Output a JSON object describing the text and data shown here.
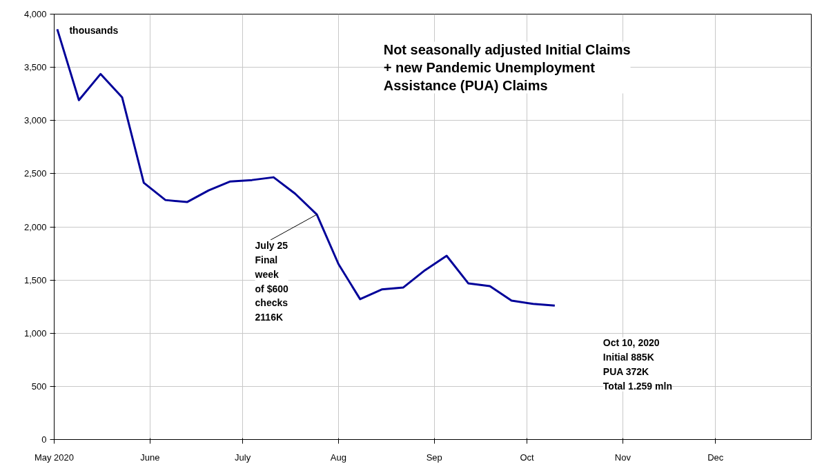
{
  "chart_data": {
    "type": "line",
    "title": "Not seasonally adjusted Initial Claims\n+ new Pandemic Unemployment\nAssistance (PUA) Claims",
    "x": [
      "2020-05-02",
      "2020-05-09",
      "2020-05-16",
      "2020-05-23",
      "2020-05-30",
      "2020-06-06",
      "2020-06-13",
      "2020-06-20",
      "2020-06-27",
      "2020-07-04",
      "2020-07-11",
      "2020-07-18",
      "2020-07-25",
      "2020-08-01",
      "2020-08-08",
      "2020-08-15",
      "2020-08-22",
      "2020-08-29",
      "2020-09-05",
      "2020-09-12",
      "2020-09-19",
      "2020-09-26",
      "2020-10-03",
      "2020-10-10"
    ],
    "series": [
      {
        "color": "#000099",
        "values": [
          3858,
          3191,
          3437,
          3217,
          2414,
          2252,
          2233,
          2343,
          2427,
          2440,
          2466,
          2311,
          2116,
          1650,
          1320,
          1411,
          1430,
          1592,
          1728,
          1469,
          1443,
          1307,
          1275,
          1259
        ]
      }
    ],
    "xlim": [
      "2020-05-01",
      "2021-01-01"
    ],
    "xticks": [
      {
        "value": "2020-05-01",
        "label": "May 2020"
      },
      {
        "value": "2020-06-01",
        "label": "June"
      },
      {
        "value": "2020-07-01",
        "label": "July"
      },
      {
        "value": "2020-08-01",
        "label": "Aug"
      },
      {
        "value": "2020-09-01",
        "label": "Sep"
      },
      {
        "value": "2020-10-01",
        "label": "Oct"
      },
      {
        "value": "2020-11-01",
        "label": "Nov"
      },
      {
        "value": "2020-12-01",
        "label": "Dec"
      }
    ],
    "ylim": [
      0,
      4000
    ],
    "yticks": [
      {
        "value": 0,
        "label": "0"
      },
      {
        "value": 500,
        "label": "500"
      },
      {
        "value": 1000,
        "label": "1,000"
      },
      {
        "value": 1500,
        "label": "1,500"
      },
      {
        "value": 2000,
        "label": "2,000"
      },
      {
        "value": 2500,
        "label": "2,500"
      },
      {
        "value": 3000,
        "label": "3,000"
      },
      {
        "value": 3500,
        "label": "3,500"
      },
      {
        "value": 4000,
        "label": "4,000"
      }
    ],
    "grid": true,
    "marker": "none",
    "line_style": "solid",
    "annotations": [
      "thousands",
      {
        "text": "July 25\nFinal\nweek\nof $600\nchecks\n2116K",
        "x": "2020-07-25",
        "y": 2116
      },
      "Oct 10, 2020\nInitial 885K\nPUA   372K\nTotal 1.259 mln"
    ]
  }
}
